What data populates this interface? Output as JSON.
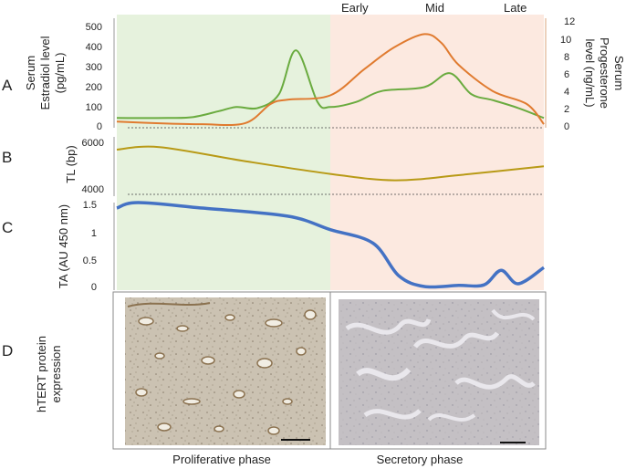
{
  "panels": {
    "A": {
      "letter": "A",
      "left_axis_title": [
        "Serum",
        "Estradiol level",
        "(pg/mL)"
      ],
      "left_ticks": [
        "500",
        "400",
        "300",
        "200",
        "100",
        "0"
      ],
      "right_axis_title": [
        "Serum",
        "Progesterone",
        "level (ng/mL)"
      ],
      "right_ticks": [
        "12",
        "10",
        "8",
        "6",
        "4",
        "2",
        "0"
      ],
      "phase_labels": [
        "Early",
        "Mid",
        "Late"
      ]
    },
    "B": {
      "letter": "B",
      "axis_title": "TL (bp)",
      "ticks": [
        "6000",
        "4000"
      ]
    },
    "C": {
      "letter": "C",
      "axis_title": "TA (AU 450 nm)",
      "ticks": [
        "1.5",
        "1",
        "0.5",
        "0"
      ]
    },
    "D": {
      "letter": "D",
      "axis_title": [
        "hTERT protein",
        "expression"
      ]
    }
  },
  "captions": {
    "proliferative": "Proliferative phase",
    "secretory": "Secretory phase"
  },
  "colors": {
    "proliferative_bg": "#e6f2dd",
    "secretory_bg": "#fce9e0",
    "estradiol": "#6aab3f",
    "progesterone": "#e07b30",
    "telomere_length": "#b89a16",
    "telomerase_activity": "#4472c4",
    "histology_prolif": "#c9bfae",
    "histology_secretory": "#c7c4c6"
  },
  "chart_data": [
    {
      "type": "line",
      "panel": "A",
      "series": [
        {
          "variable": "estradiol",
          "axis": "left",
          "x": [
            0,
            0.12,
            0.18,
            0.24,
            0.28,
            0.33,
            0.38,
            0.42,
            0.47,
            0.5,
            0.56,
            0.62,
            0.72,
            0.78,
            0.83,
            0.88,
            0.94,
            1.0
          ],
          "values": [
            40,
            40,
            45,
            75,
            95,
            90,
            160,
            380,
            120,
            95,
            120,
            175,
            195,
            265,
            160,
            130,
            90,
            40
          ]
        },
        {
          "variable": "progesterone",
          "axis": "right",
          "x": [
            0,
            0.1,
            0.2,
            0.3,
            0.36,
            0.4,
            0.5,
            0.58,
            0.65,
            0.72,
            0.76,
            0.8,
            0.88,
            0.96,
            1.0
          ],
          "values": [
            0.5,
            0.3,
            0.2,
            0.3,
            2.5,
            3,
            3.5,
            6.5,
            9,
            10.5,
            9.5,
            7,
            4,
            2.5,
            0.2
          ]
        }
      ],
      "left_ylim": [
        0,
        500
      ],
      "right_ylim": [
        0,
        12
      ]
    },
    {
      "type": "line",
      "panel": "B",
      "series": [
        {
          "variable": "telomere_length",
          "x": [
            0,
            0.1,
            0.3,
            0.5,
            0.65,
            0.8,
            1.0
          ],
          "values": [
            5750,
            5850,
            5300,
            4800,
            4550,
            4750,
            5100
          ]
        }
      ],
      "ylim": [
        4000,
        6000
      ]
    },
    {
      "type": "line",
      "panel": "C",
      "series": [
        {
          "variable": "telomerase_activity",
          "x": [
            0,
            0.05,
            0.2,
            0.4,
            0.5,
            0.6,
            0.66,
            0.72,
            0.8,
            0.86,
            0.9,
            0.94,
            1.0
          ],
          "values": [
            1.45,
            1.55,
            1.45,
            1.3,
            1.05,
            0.8,
            0.2,
            0.0,
            0.02,
            0.03,
            0.3,
            0.05,
            0.35
          ]
        }
      ],
      "ylim": [
        0,
        1.5
      ]
    }
  ]
}
